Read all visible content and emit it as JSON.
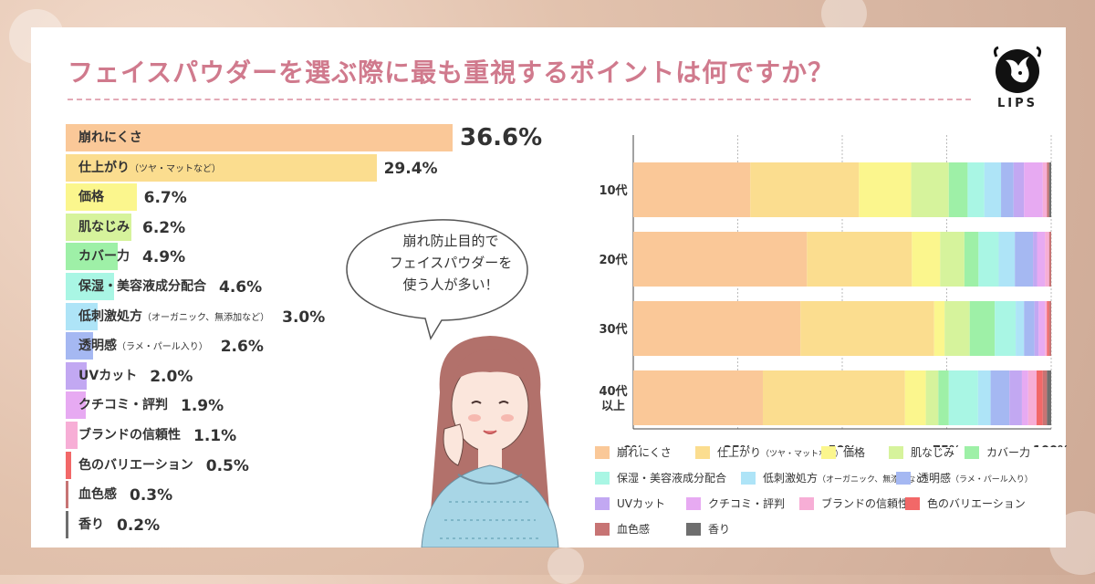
{
  "title": "フェイスパウダーを選ぶ際に最も重視するポイントは何ですか？",
  "brand": "LIPS",
  "callout": [
    "崩れ防止目的で",
    "フェイスパウダーを",
    "使う人が多い！"
  ],
  "colors": {
    "崩れにくさ": "#fac898",
    "仕上がり": "#fbdd8f",
    "価格": "#fbf68d",
    "肌なじみ": "#d6f39c",
    "カバー力": "#9ef0a7",
    "保湿・美容液成分配合": "#a9f6e4",
    "低刺激処方": "#aee4f7",
    "透明感": "#a5b8f2",
    "UVカット": "#c2a8f2",
    "クチコミ・評判": "#e7aaf2",
    "ブランドの信頼性": "#f7aed6",
    "色のバリエーション": "#f26868",
    "血色感": "#c77474",
    "香り": "#6e6e6e"
  },
  "chart_data": [
    {
      "type": "bar",
      "orientation": "horizontal",
      "categories": [
        "崩れにくさ",
        "仕上がり",
        "価格",
        "肌なじみ",
        "カバー力",
        "保湿・美容液成分配合",
        "低刺激処方",
        "透明感",
        "UVカット",
        "クチコミ・評判",
        "ブランドの信頼性",
        "色のバリエーション",
        "血色感",
        "香り"
      ],
      "category_notes": [
        "",
        "（ツヤ・マットなど）",
        "",
        "",
        "",
        "",
        "（オーガニック、無添加など）",
        "（ラメ・パール入り）",
        "",
        "",
        "",
        "",
        "",
        ""
      ],
      "values": [
        36.6,
        29.4,
        6.7,
        6.2,
        4.9,
        4.6,
        3.0,
        2.6,
        2.0,
        1.9,
        1.1,
        0.5,
        0.3,
        0.2
      ],
      "value_labels": [
        "36.6%",
        "29.4%",
        "6.7%",
        "6.2%",
        "4.9%",
        "4.6%",
        "3.0%",
        "2.6%",
        "2.0%",
        "1.9%",
        "1.1%",
        "0.5%",
        "0.3%",
        "0.2%"
      ],
      "xlim": [
        0,
        36.6
      ]
    },
    {
      "type": "bar",
      "stacked": true,
      "normalized": true,
      "orientation": "horizontal",
      "categories": [
        "10代",
        "20代",
        "30代",
        "40代\n以上"
      ],
      "x_ticks": [
        "0%",
        "25%",
        "50%",
        "75%",
        "100%"
      ],
      "xlim": [
        0,
        100
      ],
      "grid": true,
      "legend": "bottom",
      "series": [
        {
          "name": "崩れにくさ",
          "values": [
            28,
            43,
            40,
            31
          ]
        },
        {
          "name": "仕上がり",
          "values": [
            26,
            26,
            32,
            34
          ]
        },
        {
          "name": "価格",
          "values": [
            12.5,
            7,
            2.5,
            5
          ]
        },
        {
          "name": "肌なじみ",
          "values": [
            9,
            6,
            6,
            3
          ]
        },
        {
          "name": "カバー力",
          "values": [
            4.5,
            3.5,
            6,
            2.5
          ]
        },
        {
          "name": "保湿・美容液成分配合",
          "values": [
            4,
            5,
            5,
            7
          ]
        },
        {
          "name": "低刺激処方",
          "values": [
            4,
            4,
            2,
            3
          ]
        },
        {
          "name": "透明感",
          "values": [
            3,
            4.5,
            2.5,
            4.5
          ]
        },
        {
          "name": "UVカット",
          "values": [
            2.5,
            1,
            1,
            3
          ]
        },
        {
          "name": "クチコミ・評判",
          "values": [
            4.5,
            2,
            1.5,
            1.5
          ]
        },
        {
          "name": "ブランドの信頼性",
          "values": [
            1,
            1,
            0.5,
            2
          ]
        },
        {
          "name": "色のバリエーション",
          "values": [
            0,
            0,
            0.5,
            1.5
          ]
        },
        {
          "name": "血色感",
          "values": [
            0.5,
            0.5,
            0.5,
            1
          ]
        },
        {
          "name": "香り",
          "values": [
            0.5,
            0,
            0,
            1
          ]
        }
      ],
      "legend_labels": [
        "崩れにくさ",
        "仕上がり",
        "価格",
        "肌なじみ",
        "カバー力",
        "保湿・美容液成分配合",
        "低刺激処方",
        "透明感",
        "UVカット",
        "クチコミ・評判",
        "ブランドの信頼性",
        "色のバリエーション",
        "血色感",
        "香り"
      ],
      "legend_notes": [
        "",
        "（ツヤ・マットなど）",
        "",
        "",
        "",
        "",
        "（オーガニック、無添加など）",
        "（ラメ・パール入り）",
        "",
        "",
        "",
        "",
        "",
        ""
      ]
    }
  ]
}
